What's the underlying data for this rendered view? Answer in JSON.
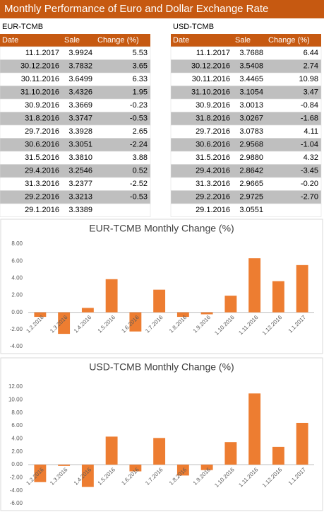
{
  "title": "Monthly Performance of Euro and Dollar Exchange Rate",
  "tables": [
    {
      "title": "EUR-TCMB",
      "columns": [
        "Date",
        "Sale",
        "Change (%)"
      ],
      "rows": [
        [
          "11.1.2017",
          "3.9924",
          "5.53"
        ],
        [
          "30.12.2016",
          "3.7832",
          "3.65"
        ],
        [
          "30.11.2016",
          "3.6499",
          "6.33"
        ],
        [
          "31.10.2016",
          "3.4326",
          "1.95"
        ],
        [
          "30.9.2016",
          "3.3669",
          "-0.23"
        ],
        [
          "31.8.2016",
          "3.3747",
          "-0.53"
        ],
        [
          "29.7.2016",
          "3.3928",
          "2.65"
        ],
        [
          "30.6.2016",
          "3.3051",
          "-2.24"
        ],
        [
          "31.5.2016",
          "3.3810",
          "3.88"
        ],
        [
          "29.4.2016",
          "3.2546",
          "0.52"
        ],
        [
          "31.3.2016",
          "3.2377",
          "-2.52"
        ],
        [
          "29.2.2016",
          "3.3213",
          "-0.53"
        ],
        [
          "29.1.2016",
          "3.3389"
        ]
      ]
    },
    {
      "title": "USD-TCMB",
      "columns": [
        "Date",
        "Sale",
        "Change (%)"
      ],
      "rows": [
        [
          "11.1.2017",
          "3.7688",
          "6.44"
        ],
        [
          "30.12.2016",
          "3.5408",
          "2.74"
        ],
        [
          "30.11.2016",
          "3.4465",
          "10.98"
        ],
        [
          "31.10.2016",
          "3.1054",
          "3.47"
        ],
        [
          "30.9.2016",
          "3.0013",
          "-0.84"
        ],
        [
          "31.8.2016",
          "3.0267",
          "-1.68"
        ],
        [
          "29.7.2016",
          "3.0783",
          "4.11"
        ],
        [
          "30.6.2016",
          "2.9568",
          "-1.04"
        ],
        [
          "31.5.2016",
          "2.9880",
          "4.32"
        ],
        [
          "29.4.2016",
          "2.8642",
          "-3.45"
        ],
        [
          "31.3.2016",
          "2.9665",
          "-0.20"
        ],
        [
          "29.2.2016",
          "2.9725",
          "-2.70"
        ],
        [
          "29.1.2016",
          "3.0551"
        ]
      ]
    }
  ],
  "chart_data": [
    {
      "type": "bar",
      "title": "EUR-TCMB Monthly Change (%)",
      "categories": [
        "1.2.2016",
        "1.3.2016",
        "1.4.2016",
        "1.5.2016",
        "1.6.2016",
        "1.7.2016",
        "1.8.2016",
        "1.9.2016",
        "1.10.2016",
        "1.11.2016",
        "1.12.2016",
        "1.1.2017"
      ],
      "values": [
        -0.53,
        -2.52,
        0.52,
        3.88,
        -2.24,
        2.65,
        -0.53,
        -0.23,
        1.95,
        6.33,
        3.65,
        5.53
      ],
      "color": "#ed7d31",
      "ylim": [
        -4,
        8
      ],
      "yticks": [
        {
          "value": -4,
          "label": "-4.00"
        },
        {
          "value": -2,
          "label": "-2.00"
        },
        {
          "value": 0,
          "label": "0.00"
        },
        {
          "value": 2,
          "label": "2.00"
        },
        {
          "value": 4,
          "label": "4.00"
        },
        {
          "value": 6,
          "label": "6.00"
        },
        {
          "value": 8,
          "label": "8.00"
        }
      ],
      "grid": false
    },
    {
      "type": "bar",
      "title": "USD-TCMB Monthly Change (%)",
      "categories": [
        "1.2.2016",
        "1.3.2016",
        "1.4.2016",
        "1.5.2016",
        "1.6.2016",
        "1.7.2016",
        "1.8.2016",
        "1.9.2016",
        "1.10.2016",
        "1.11.2016",
        "1.12.2016",
        "1.1.2017"
      ],
      "values": [
        -2.7,
        -0.2,
        -3.45,
        4.32,
        -1.04,
        4.11,
        -1.68,
        -0.84,
        3.47,
        10.98,
        2.74,
        6.44
      ],
      "color": "#ed7d31",
      "ylim": [
        -6,
        12
      ],
      "yticks": [
        {
          "value": -6,
          "label": "-6.00"
        },
        {
          "value": -4,
          "label": "-4.00"
        },
        {
          "value": -2,
          "label": "-2.00"
        },
        {
          "value": 0,
          "label": "0.00"
        },
        {
          "value": 2,
          "label": "2.00"
        },
        {
          "value": 4,
          "label": "4.00"
        },
        {
          "value": 6,
          "label": "6.00"
        },
        {
          "value": 8,
          "label": "8.00"
        },
        {
          "value": 10,
          "label": "10.00"
        },
        {
          "value": 12,
          "label": "12.00"
        }
      ],
      "grid": false
    }
  ]
}
